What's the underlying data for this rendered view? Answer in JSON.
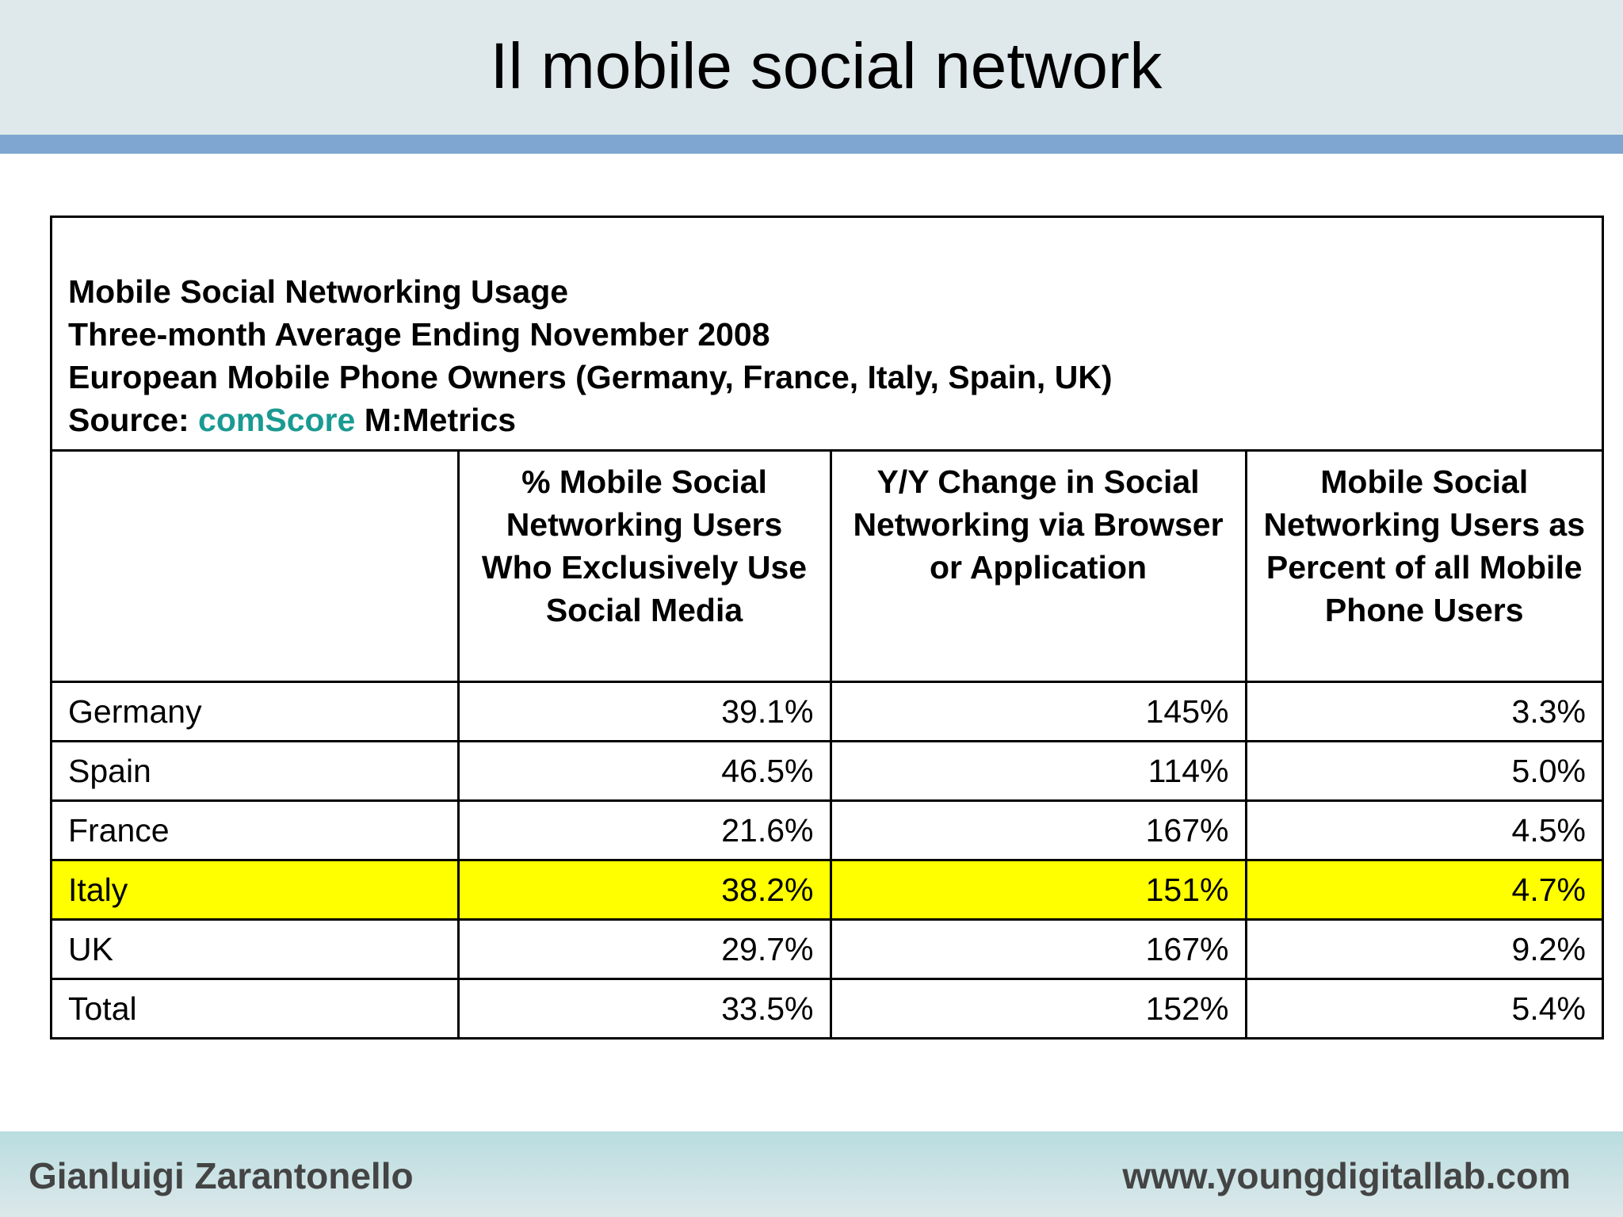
{
  "slide": {
    "title": "Il mobile social network",
    "footer_left": "Gianluigi Zarantonello",
    "footer_right": "www.youngdigitallab.com"
  },
  "caption": {
    "line1": "Mobile Social Networking Usage",
    "line2": "Three-month Average Ending November 2008",
    "line3": "European Mobile Phone Owners (Germany, France, Italy, Spain, UK)",
    "source_label": "Source: ",
    "source_brand": "comScore",
    "source_suffix": " M:Metrics"
  },
  "chart_data": {
    "type": "table",
    "columns": [
      "",
      "% Mobile Social Networking Users Who Exclusively Use Social Media",
      "Y/Y Change in Social Networking via Browser or Application",
      "Mobile Social Networking Users as Percent of all Mobile Phone Users"
    ],
    "rows": [
      {
        "label": "Germany",
        "cells": [
          "39.1%",
          "145%",
          "3.3%"
        ]
      },
      {
        "label": "Spain",
        "cells": [
          "46.5%",
          "114%",
          "5.0%"
        ]
      },
      {
        "label": "France",
        "cells": [
          "21.6%",
          "167%",
          "4.5%"
        ]
      },
      {
        "label": "Italy",
        "cells": [
          "38.2%",
          "151%",
          "4.7%"
        ],
        "highlighted": true
      },
      {
        "label": "UK",
        "cells": [
          "29.7%",
          "167%",
          "9.2%"
        ]
      },
      {
        "label": "Total",
        "cells": [
          "33.5%",
          "152%",
          "5.4%"
        ]
      }
    ],
    "highlight_color": "#ffff00"
  },
  "colors": {
    "header_bg": "#dfe8eb",
    "header_bar": "#7ea6d0",
    "source_brand": "#1a9a92",
    "footer_bg": "#b9dde0"
  }
}
